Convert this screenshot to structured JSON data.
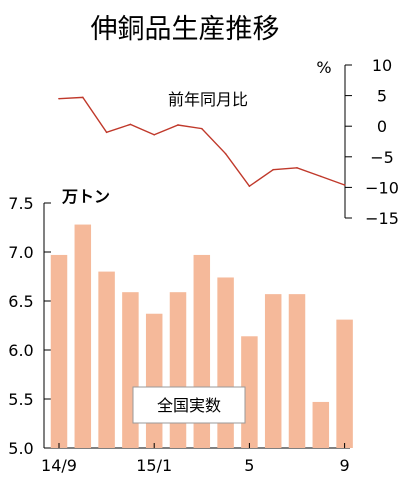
{
  "title": "伸銅品生産推移",
  "chart_data": [
    {
      "type": "line",
      "label": "前年同月比",
      "unit": "%",
      "ylim": [
        -15,
        10
      ],
      "yticks": [
        "10",
        "5",
        "0",
        "−5",
        "−10",
        "−15"
      ],
      "y_tick_values": [
        10,
        5,
        0,
        -5,
        -10,
        -15
      ],
      "values": [
        4.5,
        4.7,
        -1.0,
        0.3,
        -1.4,
        0.2,
        -0.4,
        -4.5,
        -9.8,
        -7.1,
        -6.8,
        -8.2,
        -9.6
      ],
      "color": "#c0392b"
    },
    {
      "type": "bar",
      "label": "全国実数",
      "unit": "万トン",
      "ylim": [
        5.0,
        7.5
      ],
      "yticks": [
        "7.5",
        "7.0",
        "6.5",
        "6.0",
        "5.5",
        "5.0"
      ],
      "y_tick_values": [
        7.5,
        7.0,
        6.5,
        6.0,
        5.5,
        5.0
      ],
      "values": [
        6.97,
        7.28,
        6.8,
        6.59,
        6.37,
        6.59,
        6.97,
        6.74,
        6.14,
        6.57,
        6.57,
        5.47,
        6.31
      ],
      "color": "#f5b99a"
    }
  ],
  "x_labels": [
    {
      "index": 0,
      "text": "14/9"
    },
    {
      "index": 4,
      "text": "15/1"
    },
    {
      "index": 8,
      "text": "5"
    },
    {
      "index": 12,
      "text": "9"
    }
  ]
}
